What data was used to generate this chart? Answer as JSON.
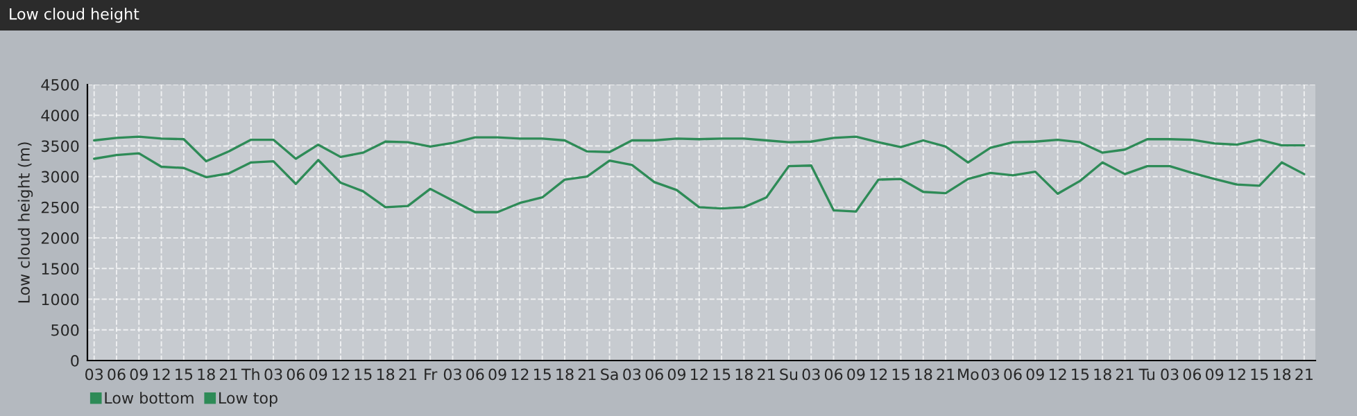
{
  "chart_data": {
    "type": "line",
    "title": "Low cloud height",
    "ylabel": "Low cloud height (m)",
    "categories": [
      "03",
      "06",
      "09",
      "12",
      "15",
      "18",
      "21",
      "Th",
      "03",
      "06",
      "09",
      "12",
      "15",
      "18",
      "21",
      "Fr",
      "03",
      "06",
      "09",
      "12",
      "15",
      "18",
      "21",
      "Sa",
      "03",
      "06",
      "09",
      "12",
      "15",
      "18",
      "21",
      "Su",
      "03",
      "06",
      "09",
      "12",
      "15",
      "18",
      "21",
      "Mo",
      "03",
      "06",
      "09",
      "12",
      "15",
      "18",
      "21",
      "Tu",
      "03",
      "06",
      "09",
      "12",
      "15",
      "18",
      "21"
    ],
    "series": [
      {
        "name": "Low bottom",
        "color": "#2e8b57",
        "values": [
          3290,
          3350,
          3380,
          3160,
          3140,
          2990,
          3050,
          3230,
          3250,
          2880,
          3270,
          2900,
          2760,
          2500,
          2520,
          2800,
          2610,
          2420,
          2420,
          2570,
          2660,
          2950,
          3000,
          3260,
          3190,
          2910,
          2780,
          2500,
          2480,
          2500,
          2660,
          3170,
          3180,
          2450,
          2430,
          2950,
          2960,
          2750,
          2730,
          2960,
          3060,
          3020,
          3080,
          2720,
          2930,
          3230,
          3040,
          3170,
          3170,
          3060,
          2960,
          2870,
          2850,
          3230,
          3040
        ]
      },
      {
        "name": "Low top",
        "color": "#2e8b57",
        "values": [
          3590,
          3630,
          3650,
          3620,
          3610,
          3250,
          3410,
          3600,
          3600,
          3290,
          3520,
          3320,
          3390,
          3570,
          3560,
          3490,
          3550,
          3640,
          3640,
          3620,
          3620,
          3590,
          3410,
          3400,
          3590,
          3590,
          3620,
          3610,
          3620,
          3620,
          3590,
          3560,
          3570,
          3630,
          3650,
          3560,
          3480,
          3590,
          3490,
          3230,
          3470,
          3560,
          3570,
          3600,
          3560,
          3390,
          3440,
          3610,
          3610,
          3600,
          3540,
          3520,
          3600,
          3510,
          3510
        ]
      }
    ],
    "ylim": [
      0,
      4500
    ],
    "yticks": [
      0,
      500,
      1000,
      1500,
      2000,
      2500,
      3000,
      3500,
      4000,
      4500
    ],
    "grid": true,
    "legend": "bottom left",
    "marker": "none",
    "line_style": "solid"
  }
}
